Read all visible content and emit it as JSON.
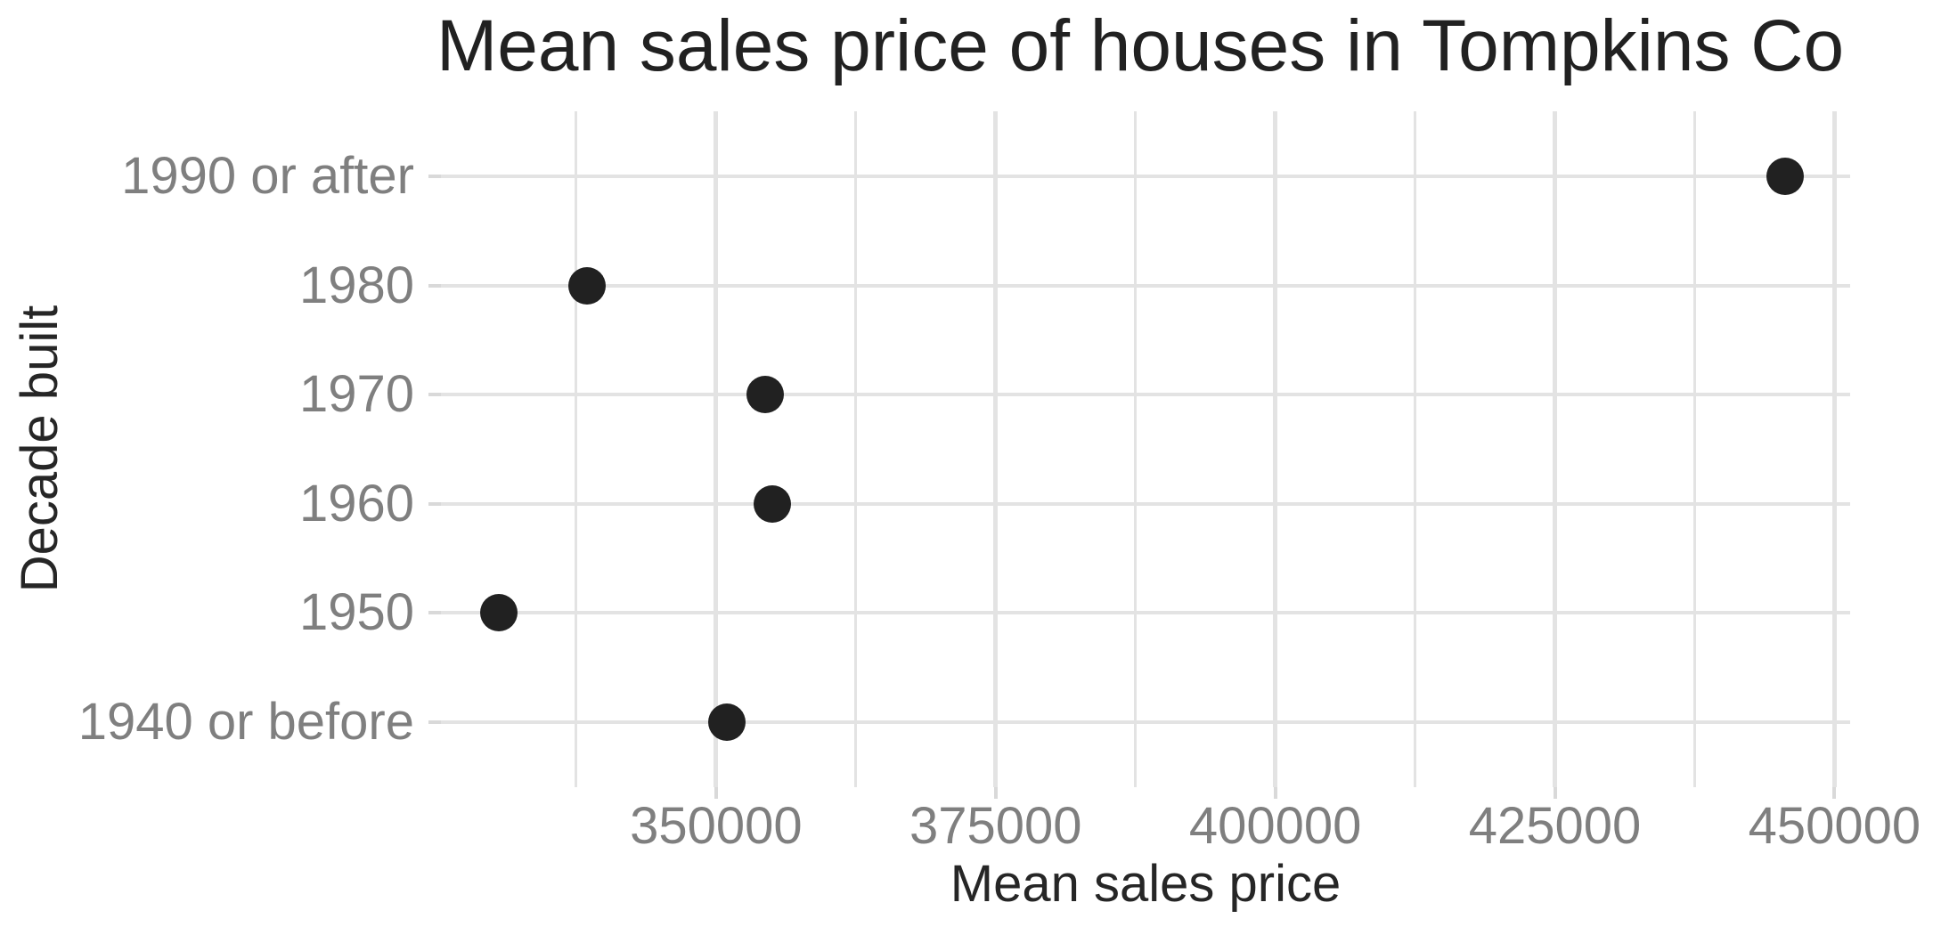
{
  "chart_data": {
    "type": "scatter",
    "variant": "horizontal-dot-plot",
    "title": "Mean sales price of houses in Tompkins Co",
    "xlabel": "Mean sales price",
    "ylabel": "Decade built",
    "categories": [
      "1990 or after",
      "1980",
      "1970",
      "1960",
      "1950",
      "1940 or before"
    ],
    "values": [
      445600,
      338500,
      354400,
      355000,
      330600,
      351000
    ],
    "x_major_ticks": [
      350000,
      375000,
      400000,
      425000,
      450000
    ],
    "x_tick_labels": [
      "350000",
      "375000",
      "400000",
      "425000",
      "450000"
    ],
    "x_minor_ticks": [
      337500,
      362500,
      387500,
      412500,
      437500
    ],
    "xlim": [
      325400,
      451400
    ],
    "grid": true,
    "legend": false,
    "colors": {
      "background": "#ffffff",
      "point": "#212121",
      "gridline": "#e3e3e3",
      "tick_mark": "#d9d9d9",
      "axis_text": "#7f7f7f",
      "axis_title": "#262626",
      "title_text": "#212121"
    }
  }
}
